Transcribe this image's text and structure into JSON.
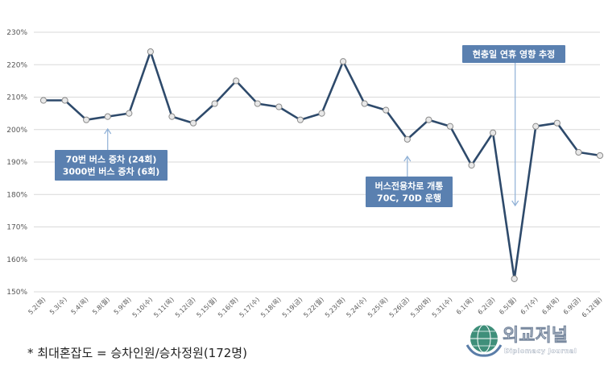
{
  "chart_data": {
    "type": "line",
    "categories": [
      "5.2(화)",
      "5.3(수)",
      "5.4(목)",
      "5.8(월)",
      "5.9(화)",
      "5.10(수)",
      "5.11(목)",
      "5.12(금)",
      "5.15(월)",
      "5.16(화)",
      "5.17(수)",
      "5.18(목)",
      "5.19(금)",
      "5.22(월)",
      "5.23(화)",
      "5.24(수)",
      "5.25(목)",
      "5.26(금)",
      "5.30(화)",
      "5.31(수)",
      "6.1(목)",
      "6.2(금)",
      "6.5(월)",
      "6.7(수)",
      "6.8(목)",
      "6.9(금)",
      "6.12(월)"
    ],
    "values": [
      209,
      209,
      203,
      204,
      205,
      224,
      204,
      202,
      208,
      215,
      208,
      207,
      203,
      205,
      221,
      208,
      206,
      197,
      203,
      201,
      189,
      199,
      154,
      201,
      202,
      193,
      192
    ],
    "yticks": [
      "150%",
      "160%",
      "170%",
      "180%",
      "190%",
      "200%",
      "210%",
      "220%",
      "230%"
    ],
    "ylim": [
      150,
      230
    ],
    "grid": true,
    "line_color": "#2e4a6b",
    "annotation_color": "#5a80b0",
    "annotations": [
      {
        "lines": [
          "70번 버스 증차 (24회)",
          "3000번 버스 증차 (6회)"
        ],
        "target_index": 3
      },
      {
        "lines": [
          "버스전용차로 개통",
          "70C, 70D 운행"
        ],
        "target_index": 17
      },
      {
        "lines": [
          "현충일 연휴 영향 추정"
        ],
        "target_index": 22
      }
    ]
  },
  "footnote": "* 최대혼잡도 = 승차인원/승차정원(172명)",
  "logo": {
    "title": "외교저널",
    "subtitle": "Diplomacy Journal"
  }
}
